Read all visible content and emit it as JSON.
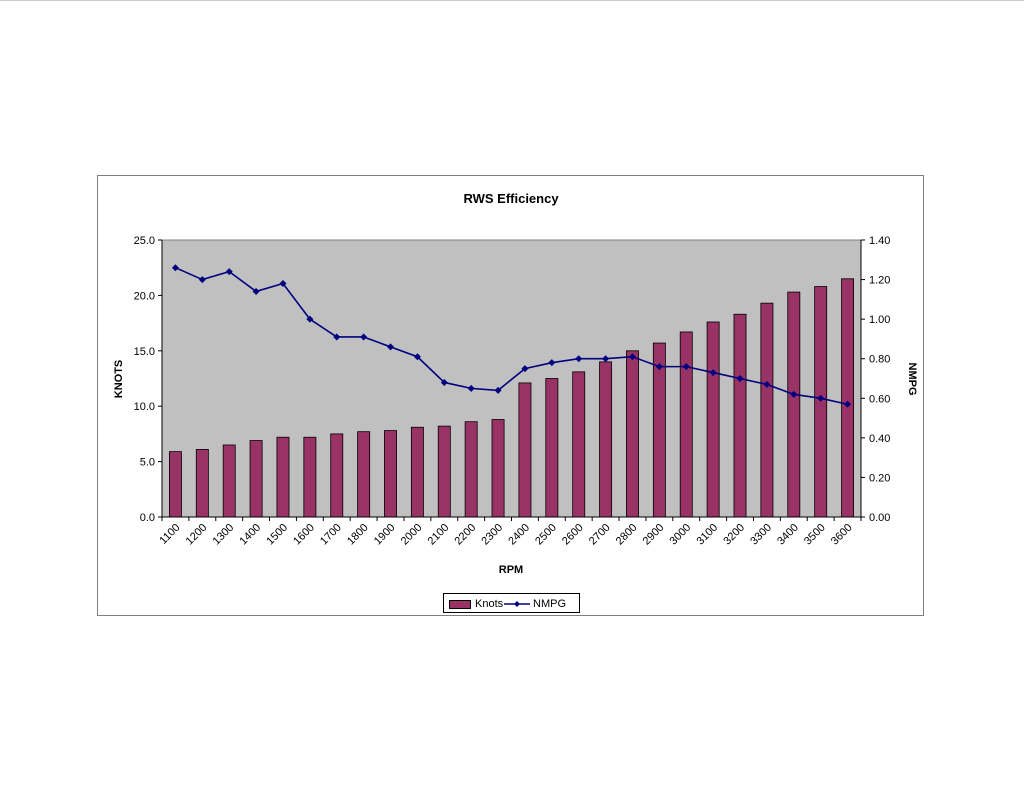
{
  "chart_data": {
    "type": "bar",
    "title": "RWS Efficiency",
    "xlabel": "RPM",
    "ylabel": "KNOTS",
    "y2label": "NMPG",
    "categories": [
      "1100",
      "1200",
      "1300",
      "1400",
      "1500",
      "1600",
      "1700",
      "1800",
      "1900",
      "2000",
      "2100",
      "2200",
      "2300",
      "2400",
      "2500",
      "2600",
      "2700",
      "2800",
      "2900",
      "3000",
      "3100",
      "3200",
      "3300",
      "3400",
      "3500",
      "3600"
    ],
    "ylim": [
      0,
      25
    ],
    "yticks": [
      "0.0",
      "5.0",
      "10.0",
      "15.0",
      "20.0",
      "25.0"
    ],
    "y2lim": [
      0,
      1.4
    ],
    "y2ticks": [
      "0.00",
      "0.20",
      "0.40",
      "0.60",
      "0.80",
      "1.00",
      "1.20",
      "1.40"
    ],
    "grid": false,
    "legend_position": "bottom",
    "series": [
      {
        "name": "Knots",
        "type": "bar",
        "axis": "left",
        "color": "#993366",
        "values": [
          5.9,
          6.1,
          6.5,
          6.9,
          7.2,
          7.2,
          7.5,
          7.7,
          7.8,
          8.1,
          8.2,
          8.6,
          8.8,
          12.1,
          12.5,
          13.1,
          14.0,
          15.0,
          15.7,
          16.7,
          17.6,
          18.3,
          19.3,
          20.3,
          20.8,
          21.5
        ]
      },
      {
        "name": "NMPG",
        "type": "line",
        "axis": "right",
        "color": "#000080",
        "values": [
          1.26,
          1.2,
          1.24,
          1.14,
          1.18,
          1.0,
          0.91,
          0.91,
          0.86,
          0.81,
          0.68,
          0.65,
          0.64,
          0.75,
          0.78,
          0.8,
          0.8,
          0.81,
          0.76,
          0.76,
          0.73,
          0.7,
          0.67,
          0.62,
          0.6,
          0.57
        ]
      }
    ]
  }
}
